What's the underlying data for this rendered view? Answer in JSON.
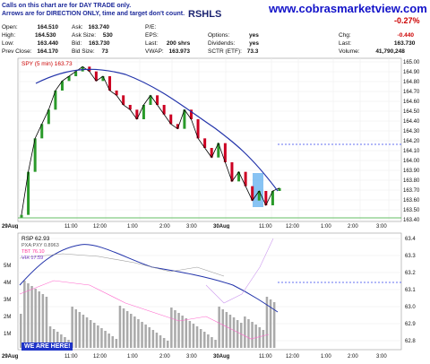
{
  "notice": {
    "line1": "Calls on this chart are for DAY TRADE only.",
    "line2": "Arrows are for DIRECTION ONLY, time and target don't count."
  },
  "site_url": "www.cobrasmarketview.com",
  "title_fragment": "RSHLS",
  "quote": {
    "open_label": "Open:",
    "open": "164.510",
    "high_label": "High:",
    "high": "164.530",
    "low_label": "Low:",
    "low": "163.440",
    "prev_label": "Prev Close:",
    "prev": "164.170",
    "ask_label": "Ask:",
    "ask": "163.740",
    "asksize_label": "Ask Size:",
    "asksize": "530",
    "bid_label": "Bid:",
    "bid": "163.730",
    "bidsize_label": "Bid Size:",
    "bidsize": "73",
    "pe_label": "P/E:",
    "pe": "",
    "eps_label": "EPS:",
    "eps": "",
    "last_label": "Last:",
    "last": "200 shrs",
    "vwap_label": "VWAP:",
    "vwap": "163.973",
    "options_label": "Options:",
    "options": "yes",
    "dividends_label": "Dividends:",
    "dividends": "yes",
    "sctr_label": "SCTR (ETF):",
    "sctr": "73.3",
    "change_pct": "-0.27%",
    "chg_label": "Chg:",
    "chg": "-0.440",
    "quote_last_label": "Last:",
    "quote_last": "163.730",
    "volume_label": "Volume:",
    "volume": "41,790,248"
  },
  "ma_label": "SPY (5 min) 163.73",
  "sub_label": "RSP 62.93",
  "sub_legend": [
    {
      "text": "PXA:PXY 0.8963",
      "color": "#555555"
    },
    {
      "text": "TBT 76.10",
      "color": "#ff3399"
    },
    {
      "text": "VIX 17.59",
      "color": "#7733cc"
    }
  ],
  "we_are_here": "WE ARE HERE!",
  "colors": {
    "up": "#2a9a2a",
    "down": "#cc0022",
    "ma": "#2233aa",
    "bg_grid": "#dddddd"
  },
  "chart_data": {
    "type": "line",
    "title": "",
    "ylabel": "",
    "main_y_ticks": [
      "165.00",
      "164.90",
      "164.80",
      "164.70",
      "164.60",
      "164.50",
      "164.40",
      "164.30",
      "164.20",
      "164.10",
      "164.00",
      "163.90",
      "163.80",
      "163.70",
      "163.60",
      "163.50",
      "163.40"
    ],
    "x_ticks": [
      "29Aug",
      "11:00",
      "12:00",
      "1:00",
      "2:00",
      "3:00",
      "30Aug",
      "11:00",
      "12:00",
      "1:00",
      "2:00",
      "3:00"
    ],
    "sub_y_ticks": [
      "63.4",
      "63.3",
      "63.2",
      "63.1",
      "63.0",
      "62.9",
      "62.8"
    ],
    "volume_ticks": [
      "5M",
      "4M",
      "3M",
      "2M",
      "1M"
    ],
    "ylim": [
      163.4,
      165.05
    ],
    "series": [
      {
        "name": "SPY (5 min)",
        "values": [
          163.45,
          163.9,
          164.25,
          164.4,
          164.55,
          164.75,
          164.85,
          164.9,
          164.95,
          165.0,
          164.95,
          164.85,
          164.9,
          164.75,
          164.7,
          164.6,
          164.55,
          164.45,
          164.6,
          164.7,
          164.6,
          164.5,
          164.4,
          164.35,
          164.55,
          164.45,
          164.25,
          164.15,
          164.05,
          164.2,
          164.0,
          163.8,
          163.9,
          163.75,
          163.6,
          163.7,
          163.55,
          163.7,
          163.73
        ]
      }
    ]
  }
}
